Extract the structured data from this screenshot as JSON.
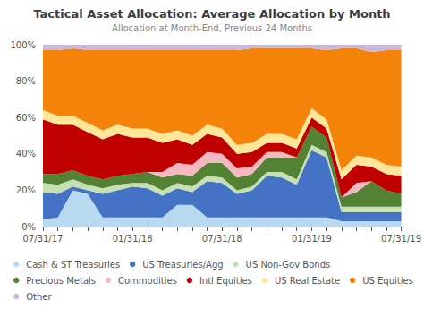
{
  "chart_data": {
    "type": "area",
    "title": "Tactical Asset Allocation: Average Allocation by Month",
    "subtitle": "Allocation at Month-End, Previous 24 Months",
    "categories": [
      "07/31/17",
      null,
      null,
      null,
      null,
      null,
      "01/31/18",
      null,
      null,
      null,
      null,
      null,
      "07/31/18",
      null,
      null,
      null,
      null,
      null,
      "01/31/19",
      null,
      null,
      null,
      null,
      null,
      "07/31/19"
    ],
    "series": [
      {
        "name": "Cash & ST Treasuries",
        "color": "#B8D9F0",
        "values": [
          4,
          5,
          20,
          18,
          5,
          5,
          5,
          5,
          5,
          12,
          12,
          5,
          5,
          5,
          5,
          5,
          5,
          5,
          5,
          5,
          3,
          3,
          3,
          3,
          3
        ]
      },
      {
        "name": "US Treasuries/Agg",
        "color": "#4472C4",
        "values": [
          15,
          13,
          2,
          2,
          13,
          15,
          17,
          16,
          12,
          9,
          7,
          20,
          19,
          13,
          15,
          23,
          22,
          18,
          37,
          33,
          5,
          5,
          5,
          5,
          5
        ]
      },
      {
        "name": "US Non-Gov Bonds",
        "color": "#C6E0B4",
        "values": [
          5,
          5,
          4,
          3,
          3,
          3,
          2,
          3,
          3,
          3,
          3,
          3,
          3,
          2,
          2,
          2,
          3,
          3,
          3,
          3,
          3,
          3,
          3,
          3,
          3
        ]
      },
      {
        "name": "Precious Metals",
        "color": "#548235",
        "values": [
          5,
          6,
          5,
          5,
          5,
          5,
          5,
          6,
          7,
          5,
          6,
          7,
          8,
          7,
          7,
          8,
          8,
          12,
          10,
          8,
          5,
          8,
          14,
          9,
          7
        ]
      },
      {
        "name": "Commodities",
        "color": "#F4B8C1",
        "values": [
          0,
          0,
          0,
          0,
          0,
          0,
          0,
          0,
          3,
          6,
          6,
          6,
          5,
          5,
          4,
          3,
          3,
          0,
          0,
          0,
          0,
          5,
          0,
          0,
          0
        ]
      },
      {
        "name": "Intl Equities",
        "color": "#C00000",
        "values": [
          30,
          27,
          25,
          24,
          22,
          23,
          20,
          19,
          16,
          13,
          11,
          10,
          9,
          8,
          8,
          5,
          5,
          5,
          5,
          5,
          10,
          10,
          8,
          9,
          10
        ]
      },
      {
        "name": "US Real Estate",
        "color": "#FFE699",
        "values": [
          5,
          5,
          5,
          5,
          5,
          5,
          5,
          5,
          5,
          5,
          5,
          5,
          5,
          5,
          5,
          5,
          5,
          5,
          5,
          5,
          5,
          5,
          5,
          5,
          5
        ]
      },
      {
        "name": "US Equities",
        "color": "#F4830A",
        "values": [
          33,
          36,
          37,
          40,
          44,
          41,
          43,
          43,
          46,
          44,
          47,
          41,
          43,
          52,
          52,
          47,
          47,
          50,
          33,
          38,
          67,
          59,
          58,
          63,
          64
        ]
      },
      {
        "name": "Other",
        "color": "#C9B8D9",
        "values": [
          3,
          3,
          2,
          3,
          3,
          3,
          3,
          3,
          3,
          3,
          3,
          3,
          3,
          3,
          2,
          2,
          2,
          2,
          2,
          3,
          2,
          2,
          4,
          3,
          3
        ]
      }
    ],
    "stacked": true,
    "ylim": [
      0,
      100
    ],
    "yticks": [
      {
        "value": 0,
        "label": "0%"
      },
      {
        "value": 20,
        "label": "20%"
      },
      {
        "value": 40,
        "label": "40%"
      },
      {
        "value": 60,
        "label": "60%"
      },
      {
        "value": 80,
        "label": "80%"
      },
      {
        "value": 100,
        "label": "100%"
      }
    ],
    "grid": true,
    "legend": "bottom"
  }
}
